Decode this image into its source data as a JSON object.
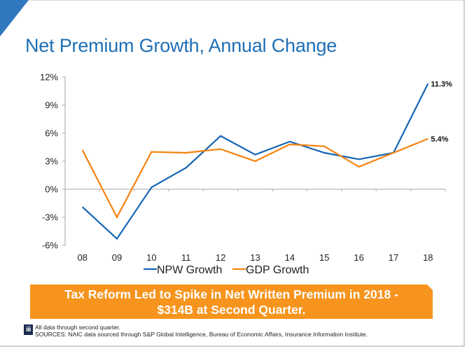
{
  "page": {
    "title": "Net Premium Growth, Annual Change",
    "callout": {
      "line1": "Tax Reform Led to Spike in Net Written Premium in 2018 -",
      "line2": "$314B at Second Quarter."
    },
    "footnote": {
      "logo_text": "iii",
      "line1": "All data through second quarter.",
      "line2": "SOURCES: NAIC data sourced through S&P Global Intelligence, Bureau of Economic Affairs, Insurance Information Institute."
    }
  },
  "chart_data": {
    "type": "line",
    "title": "Net Premium Growth, Annual Change",
    "xlabel": "",
    "ylabel": "",
    "categories": [
      "08",
      "09",
      "10",
      "11",
      "12",
      "13",
      "14",
      "15",
      "16",
      "17",
      "18"
    ],
    "y_ticks": [
      12,
      9,
      6,
      3,
      0,
      -3,
      -6
    ],
    "y_tick_labels": [
      "12%",
      "9%",
      "6%",
      "3%",
      "0%",
      "-3%",
      "-6%"
    ],
    "ylim": [
      -6,
      12
    ],
    "grid": false,
    "legend_position": "bottom",
    "series": [
      {
        "name": "NPW Growth",
        "color": "#1565b4",
        "values": [
          -1.9,
          -5.3,
          0.2,
          2.3,
          5.7,
          3.7,
          5.1,
          3.9,
          3.2,
          3.9,
          11.3
        ],
        "end_label": "11.3%"
      },
      {
        "name": "GDP Growth",
        "color": "#f5820f",
        "values": [
          4.2,
          -3.0,
          4.0,
          3.9,
          4.3,
          3.0,
          4.8,
          4.6,
          2.4,
          3.9,
          5.4
        ],
        "end_label": "5.4%"
      }
    ]
  }
}
